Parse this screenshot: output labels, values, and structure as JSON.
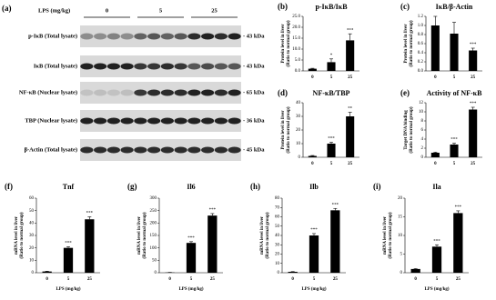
{
  "blot": {
    "label": "(a)",
    "treatment_label": "LPS (mg/kg)",
    "doses": [
      "0",
      "5",
      "25"
    ],
    "rows": [
      {
        "name": "p-IκB (Total lysate)",
        "size": "- 43 kDa"
      },
      {
        "name": "IκB (Total lysate)",
        "size": "- 43 kDa"
      },
      {
        "name": "NF-κB (Nuclear lysate)",
        "size": "- 65 kDa"
      },
      {
        "name": "TBP (Nuclear lysate)",
        "size": "- 36 kDa"
      },
      {
        "name": "β-Actin  (Total lysate)",
        "size": "- 45 kDa"
      }
    ]
  },
  "chart_data": [
    {
      "type": "bar",
      "panel": "(b)",
      "title": "p-IκB/IκB",
      "ylabel": [
        "Protein level in liver",
        "(Ratio to normal group)"
      ],
      "categories": [
        "0",
        "5",
        "25"
      ],
      "values": [
        1,
        4,
        14
      ],
      "errors": [
        0.2,
        1.5,
        3
      ],
      "significance": [
        null,
        "*",
        "***"
      ],
      "color": "#000000",
      "ylim": [
        0,
        25
      ],
      "yticks": [
        {
          "value": 0,
          "label": "0.0"
        },
        {
          "value": 5,
          "label": "5.0"
        },
        {
          "value": 10,
          "label": "10.0"
        },
        {
          "value": 15,
          "label": "15.0"
        },
        {
          "value": 20,
          "label": "20.0"
        },
        {
          "value": 25,
          "label": "25.0"
        }
      ]
    },
    {
      "type": "bar",
      "panel": "(c)",
      "title": "IκB/β-Actin",
      "ylabel": [
        "Protein level in liver",
        "(Ratio to normal group)"
      ],
      "categories": [
        "0",
        "5",
        "25"
      ],
      "values": [
        1.0,
        0.82,
        0.45
      ],
      "errors": [
        0.2,
        0.25,
        0.05
      ],
      "significance": [
        null,
        null,
        "***"
      ],
      "color": "#000000",
      "ylim": [
        0,
        1.2
      ],
      "yticks": [
        {
          "value": 0,
          "label": "0.0"
        },
        {
          "value": 0.2,
          "label": "0.2"
        },
        {
          "value": 0.4,
          "label": "0.4"
        },
        {
          "value": 0.6,
          "label": "0.6"
        },
        {
          "value": 0.8,
          "label": "0.8"
        },
        {
          "value": 1,
          "label": "1.0"
        },
        {
          "value": 1.2,
          "label": "1.2"
        }
      ]
    },
    {
      "type": "bar",
      "panel": "(d)",
      "title": "NF-κB/TBP",
      "ylabel": [
        "Protein level in liver",
        "(Ratio to normal group)"
      ],
      "categories": [
        "0",
        "5",
        "25"
      ],
      "values": [
        1,
        10,
        30
      ],
      "errors": [
        0.3,
        1,
        3
      ],
      "significance": [
        null,
        "***",
        "**"
      ],
      "color": "#000000",
      "ylim": [
        0,
        40
      ],
      "yticks": [
        0,
        10,
        20,
        30,
        40
      ]
    },
    {
      "type": "bar",
      "panel": "(e)",
      "title": "Activity of NF-κB",
      "ylabel": [
        "Target DNA binding",
        "(Ratio to normal group)"
      ],
      "categories": [
        "0",
        "5",
        "25"
      ],
      "values": [
        1,
        2.8,
        10.5
      ],
      "errors": [
        0.1,
        0.3,
        0.5
      ],
      "significance": [
        null,
        "***",
        "***"
      ],
      "color": "#000000",
      "ylim": [
        0,
        12
      ],
      "yticks": [
        0,
        2,
        4,
        6,
        8,
        10,
        12
      ]
    },
    {
      "type": "bar",
      "panel": "(f)",
      "title": "Tnf",
      "ylabel": [
        "mRNA level in liver",
        "(Ratio to normal group)"
      ],
      "xlabel": "LPS (mg/kg)",
      "categories": [
        "0",
        "5",
        "25"
      ],
      "values": [
        1,
        20,
        43
      ],
      "errors": [
        0.2,
        1,
        2
      ],
      "significance": [
        null,
        "***",
        "***"
      ],
      "color": "#000000",
      "ylim": [
        0,
        60
      ],
      "yticks": [
        0,
        10,
        20,
        30,
        40,
        50,
        60
      ]
    },
    {
      "type": "bar",
      "panel": "(g)",
      "title": "Il6",
      "ylabel": [
        "mRNA level in liver",
        "(Ratio to normal group)"
      ],
      "xlabel": "LPS (mg/kg)",
      "categories": [
        "0",
        "5",
        "25"
      ],
      "values": [
        1,
        120,
        230
      ],
      "errors": [
        0.5,
        5,
        8
      ],
      "significance": [
        null,
        "***",
        "***"
      ],
      "color": "#000000",
      "ylim": [
        0,
        300
      ],
      "yticks": [
        0,
        50,
        100,
        150,
        200,
        250,
        300
      ]
    },
    {
      "type": "bar",
      "panel": "(h)",
      "title": "Ilb",
      "ylabel": [
        "mRNA level in liver",
        "(Ratio to normal group)"
      ],
      "xlabel": "LPS (mg/kg)",
      "categories": [
        "0",
        "5",
        "25"
      ],
      "values": [
        1,
        40,
        67
      ],
      "errors": [
        0.2,
        2,
        2
      ],
      "significance": [
        null,
        "***",
        "***"
      ],
      "color": "#000000",
      "ylim": [
        0,
        80
      ],
      "yticks": [
        0,
        10,
        20,
        30,
        40,
        50,
        60,
        70,
        80
      ]
    },
    {
      "type": "bar",
      "panel": "(i)",
      "title": "Ila",
      "ylabel": [
        "mRNA level in liver",
        "(Ratio to normal group)"
      ],
      "xlabel": "LPS (mg/kg)",
      "categories": [
        "0",
        "5",
        "25"
      ],
      "values": [
        1,
        7,
        16
      ],
      "errors": [
        0.1,
        0.5,
        0.6
      ],
      "significance": [
        null,
        "***",
        "***"
      ],
      "color": "#000000",
      "ylim": [
        0,
        20
      ],
      "yticks": [
        0,
        5,
        10,
        15,
        20
      ]
    }
  ]
}
